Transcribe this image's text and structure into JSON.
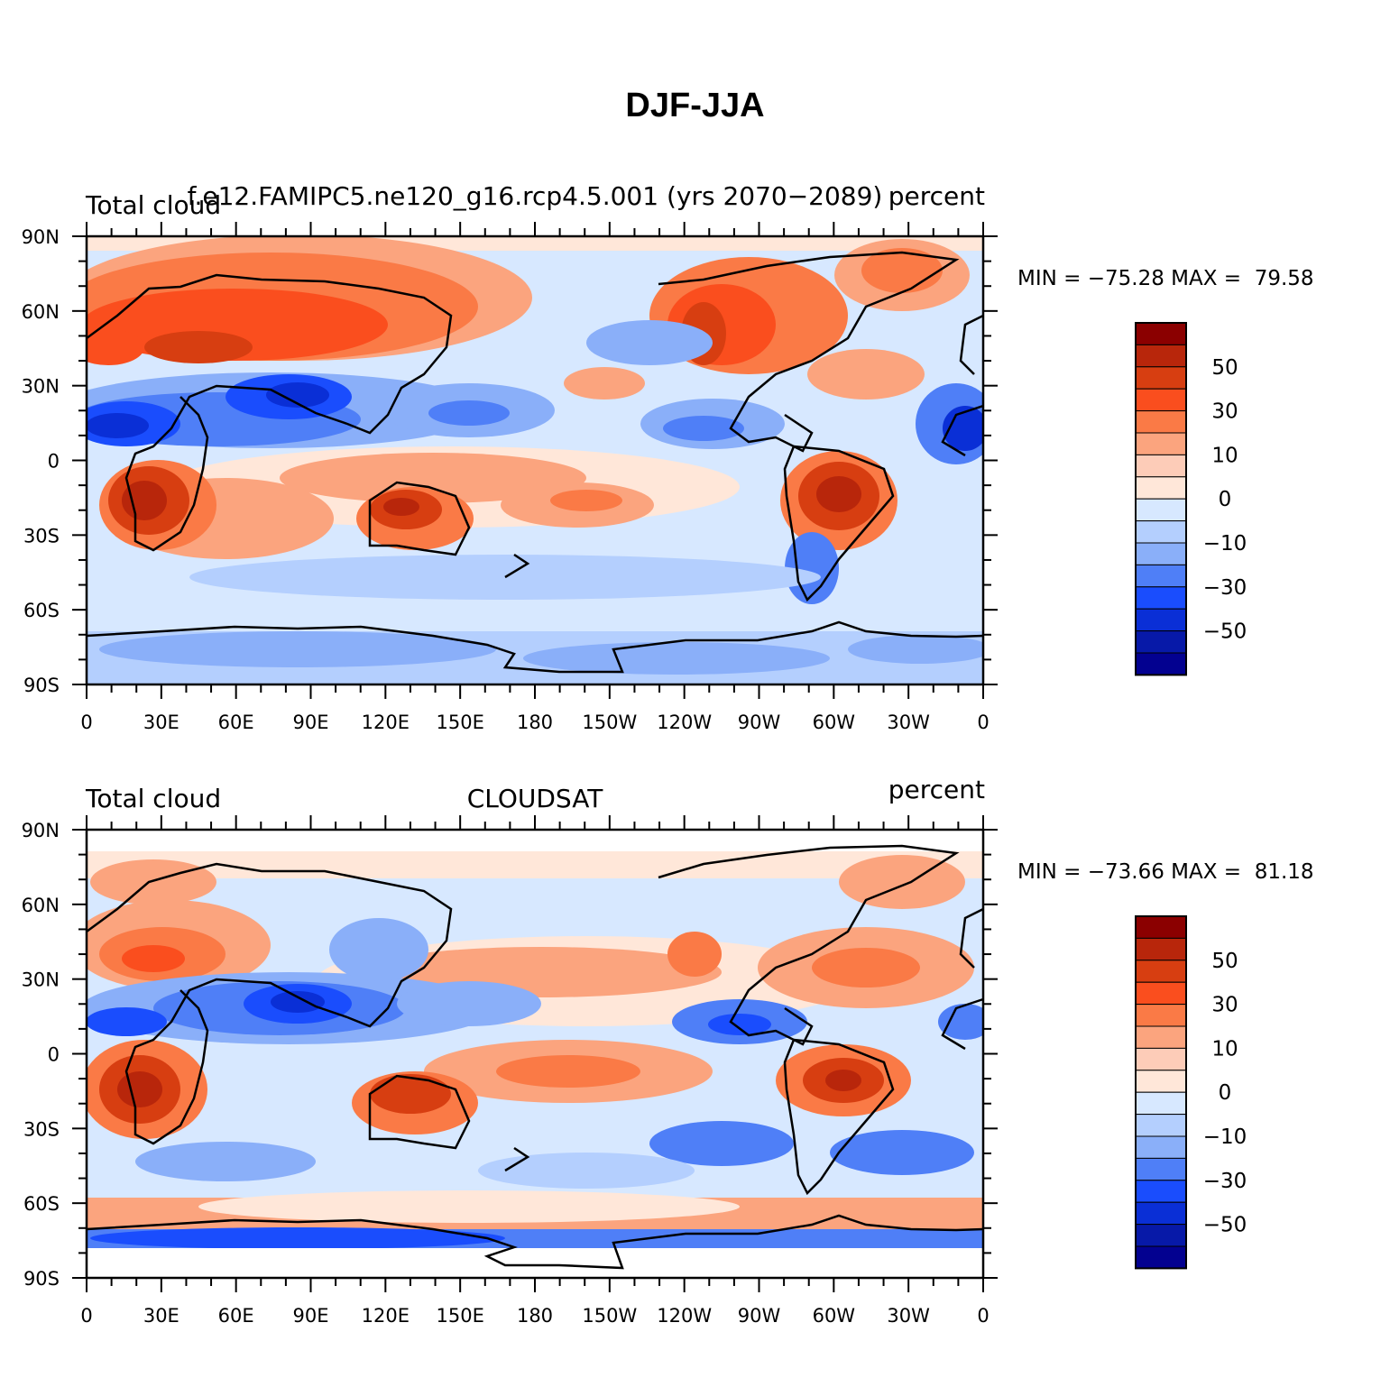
{
  "title": "DJF-JJA",
  "colorbar": {
    "colors": [
      "#8b0000",
      "#b8260b",
      "#d73e11",
      "#fa4e1e",
      "#fa7a46",
      "#fba47e",
      "#fdccb8",
      "#ffe7d9",
      "#d7e8ff",
      "#b4cffe",
      "#8aaff9",
      "#4f7ff7",
      "#1a4dfd",
      "#0a2fd6",
      "#0719a8",
      "#030190"
    ],
    "labels": [
      "50",
      "30",
      "10",
      "0",
      "−10",
      "−30",
      "−50"
    ]
  },
  "x_ticks": [
    "0",
    "30E",
    "60E",
    "90E",
    "120E",
    "150E",
    "180",
    "150W",
    "120W",
    "90W",
    "60W",
    "30W",
    "0"
  ],
  "y_ticks": [
    "90N",
    "60N",
    "30N",
    "0",
    "30S",
    "60S",
    "90S"
  ],
  "panels": [
    {
      "left_label": "Total cloud",
      "center_label": "f.e12.FAMIPC5.ne120_g16.rcp4.5.001 (yrs 2070−2089)",
      "right_label": "percent",
      "min_max": "MIN = −75.28 MAX =  79.58"
    },
    {
      "left_label": "Total cloud",
      "center_label": "CLOUDSAT",
      "right_label": "percent",
      "min_max": "MIN = −73.66 MAX =  81.18"
    }
  ]
}
